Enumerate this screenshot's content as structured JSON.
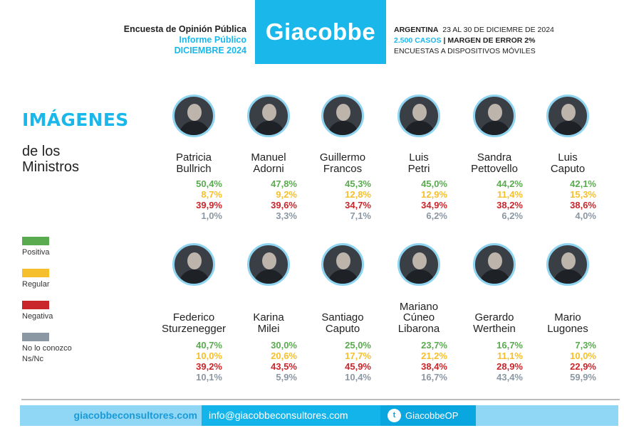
{
  "header": {
    "line1": "Encuesta de Opinión Pública",
    "line2": "Informe Público",
    "line3": "DICIEMBRE 2024",
    "logo": "Giacobbe",
    "country": "ARGENTINA",
    "dates": "23 AL 30 DE DICIEMRE DE 2024",
    "cases": "2.500 CASOS",
    "separator": "|",
    "margin": "MARGEN DE ERROR 2%",
    "method": "ENCUESTAS A DISPOSITIVOS MÓVILES"
  },
  "title": "IMÁGENES",
  "subtitle_l1": "de los",
  "subtitle_l2": "Ministros",
  "legend": [
    {
      "label": "Positiva",
      "color": "#5aab4f"
    },
    {
      "label": "Regular",
      "color": "#f5c02b"
    },
    {
      "label": "Negativa",
      "color": "#c9262c"
    },
    {
      "label": "No lo conozco",
      "label2": "Ns/Nc",
      "color": "#8b97a3"
    }
  ],
  "ministers": [
    {
      "name": [
        "Patricia",
        "Bullrich"
      ],
      "v": [
        "50,4%",
        "8,7%",
        "39,9%",
        "1,0%"
      ]
    },
    {
      "name": [
        "Manuel",
        "Adorni"
      ],
      "v": [
        "47,8%",
        "9,2%",
        "39,6%",
        "3,3%"
      ]
    },
    {
      "name": [
        "Guillermo",
        "Francos"
      ],
      "v": [
        "45,3%",
        "12,8%",
        "34,7%",
        "7,1%"
      ]
    },
    {
      "name": [
        "Luis",
        "Petri"
      ],
      "v": [
        "45,0%",
        "12,9%",
        "34,9%",
        "6,2%"
      ]
    },
    {
      "name": [
        "Sandra",
        "Pettovello"
      ],
      "v": [
        "44,2%",
        "11,4%",
        "38,2%",
        "6,2%"
      ]
    },
    {
      "name": [
        "Luis",
        "Caputo"
      ],
      "v": [
        "42,1%",
        "15,3%",
        "38,6%",
        "4,0%"
      ]
    },
    {
      "name": [
        "Federico",
        "Sturzenegger"
      ],
      "v": [
        "40,7%",
        "10,0%",
        "39,2%",
        "10,1%"
      ]
    },
    {
      "name": [
        "Karina",
        "Milei"
      ],
      "v": [
        "30,0%",
        "20,6%",
        "43,5%",
        "5,9%"
      ]
    },
    {
      "name": [
        "Santiago",
        "Caputo"
      ],
      "v": [
        "25,0%",
        "17,7%",
        "45,9%",
        "10,4%"
      ]
    },
    {
      "name": [
        "Mariano",
        "Cúneo",
        "Libarona"
      ],
      "v": [
        "23,7%",
        "21,2%",
        "38,4%",
        "16,7%"
      ]
    },
    {
      "name": [
        "Gerardo",
        "Werthein"
      ],
      "v": [
        "16,7%",
        "11,1%",
        "28,9%",
        "43,4%"
      ]
    },
    {
      "name": [
        "Mario",
        "Lugones"
      ],
      "v": [
        "7,3%",
        "10,0%",
        "22,9%",
        "59,9%"
      ]
    }
  ],
  "footer": {
    "website": "giacobbeconsultores.com",
    "email": "info@giacobbeconsultores.com",
    "twitter": "GiacobbeOP",
    "twitter_icon": "twitter-bird-icon"
  }
}
